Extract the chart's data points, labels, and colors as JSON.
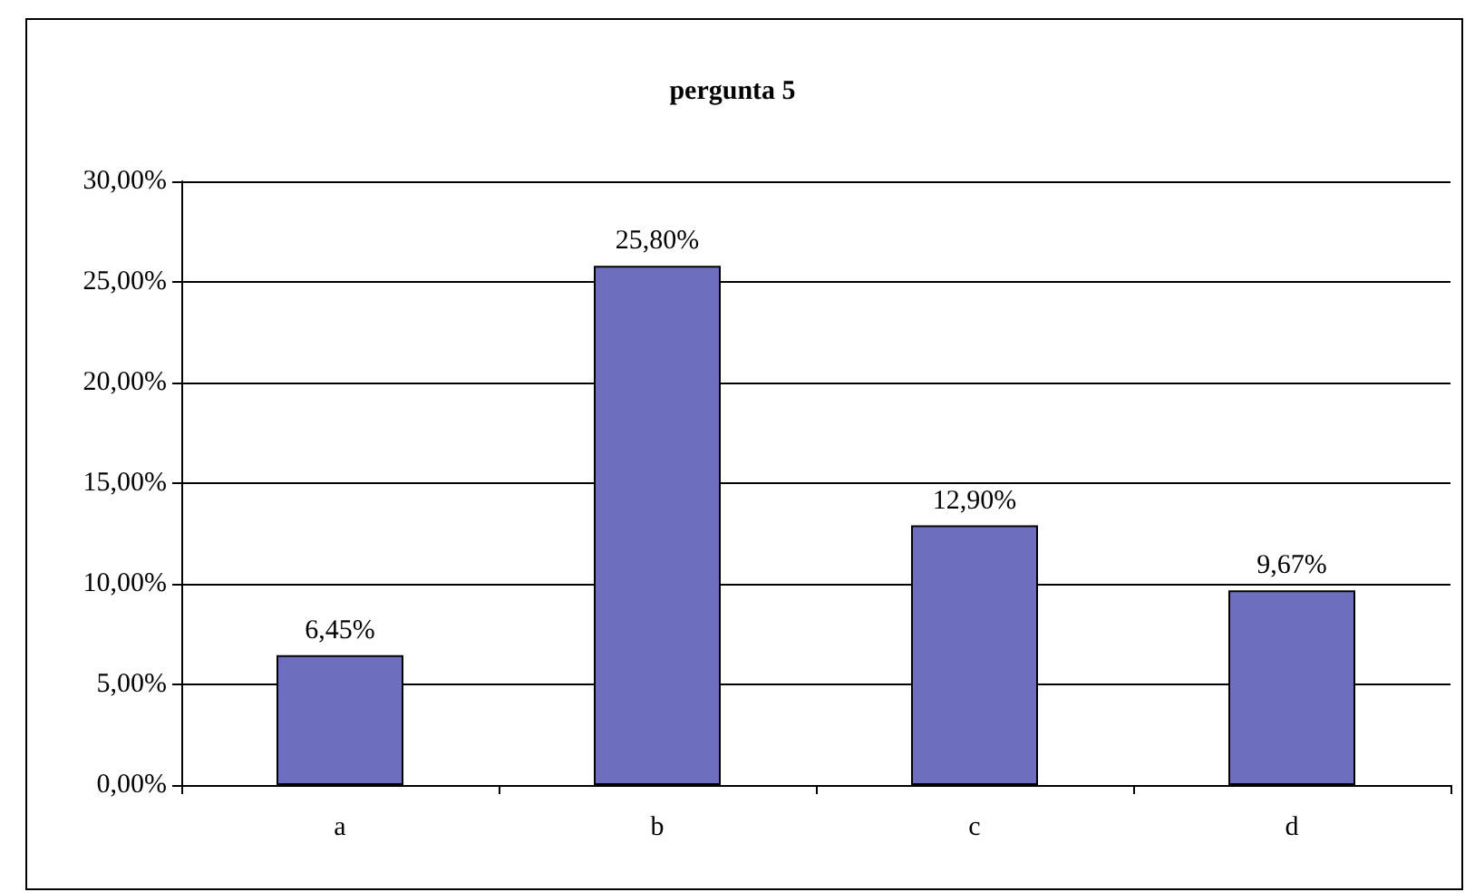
{
  "chart_data": {
    "type": "bar",
    "title": "pergunta 5",
    "categories": [
      "a",
      "b",
      "c",
      "d"
    ],
    "values": [
      6.45,
      25.8,
      12.9,
      9.67
    ],
    "value_labels": [
      "6,45%",
      "25,80%",
      "12,90%",
      "9,67%"
    ],
    "color": "#6e6ebe",
    "ylim": [
      0,
      30
    ],
    "yticks": [
      {
        "value": 0,
        "label": "0,00%"
      },
      {
        "value": 5,
        "label": "5,00%"
      },
      {
        "value": 10,
        "label": "10,00%"
      },
      {
        "value": 15,
        "label": "15,00%"
      },
      {
        "value": 20,
        "label": "20,00%"
      },
      {
        "value": 25,
        "label": "25,00%"
      },
      {
        "value": 30,
        "label": "30,00%"
      }
    ],
    "grid": "y"
  }
}
